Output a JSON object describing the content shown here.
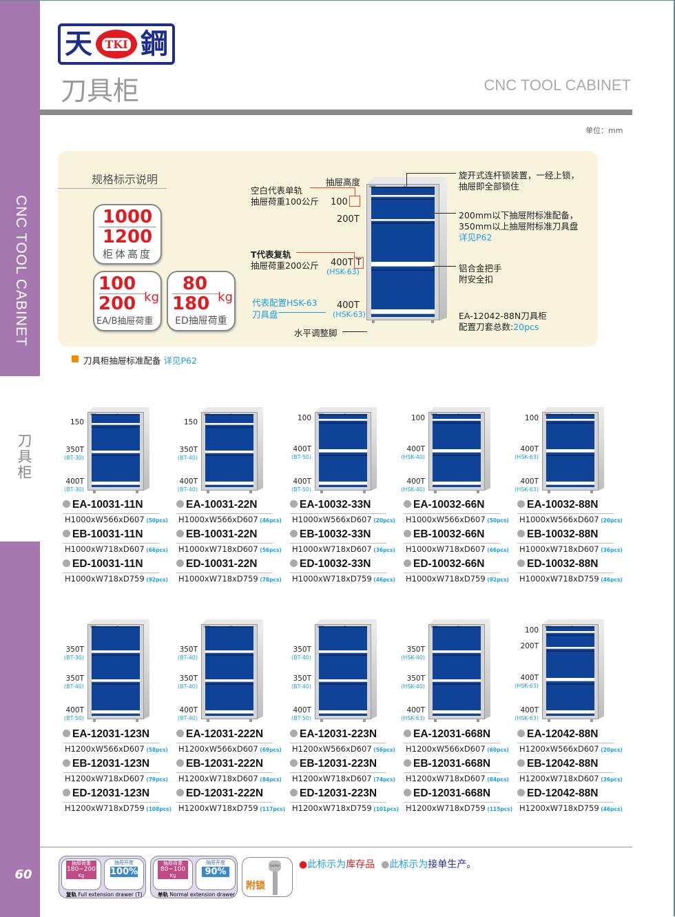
{
  "sidebar": {
    "title_en": "CNC TOOL CABINET",
    "title_cn": "刀具柜",
    "page_number": "60"
  },
  "header": {
    "logo_left": "天",
    "logo_mark": "TKI",
    "logo_right": "鋼",
    "title": "刀具柜",
    "title_en": "CNC TOOL CABINET",
    "unit": "单位：mm"
  },
  "spec": {
    "heading": "规格标示说明",
    "height_badge": {
      "v1": "1000",
      "v2": "1200",
      "caption": "柜体高度"
    },
    "eab_badge": {
      "v1": "100",
      "v2": "200",
      "unit": "kg",
      "caption": "EA/B抽屉荷重"
    },
    "ed_badge": {
      "v1": "80",
      "v2": "180",
      "unit": "kg",
      "caption": "ED抽屉荷重"
    },
    "drawer_height_label": "抽屉高度",
    "single_rail": [
      "空白代表单轨",
      "抽屉荷重100公斤"
    ],
    "double_rail": [
      "T代表复轨",
      "抽屉荷重200公斤"
    ],
    "hsk_note": [
      "代表配置HSK-63",
      "刀具盘"
    ],
    "foot_label": "水平调整脚",
    "lock_note": [
      "旋开式连杆锁装置，一经上锁，",
      "抽屉即全部锁住"
    ],
    "tray_note": [
      "200mm以下抽屉附标准配备，",
      "350mm以上抽屉附标准刀具盘"
    ],
    "tray_link": "详见P62",
    "handle_note": [
      "铝合金把手",
      "附安全扣"
    ],
    "model_note": "EA-12042-88N刀具柜",
    "total_label": "配置刀套总数:",
    "total_value": "20pcs",
    "drawers": [
      {
        "h": 100,
        "label": "100",
        "mark": ""
      },
      {
        "h": 200,
        "label": "200T"
      },
      {
        "h": 400,
        "label": "400T",
        "mark": "T",
        "tool": "(HSK-63)"
      },
      {
        "h": 400,
        "label": "400T",
        "tool": "(HSK-63)"
      }
    ]
  },
  "std_note": {
    "text": "刀具柜抽屉标准配备",
    "link": "详见P62"
  },
  "products": [
    {
      "drawers": [
        {
          "h": 150,
          "label": "150"
        },
        {
          "h": 350,
          "label": "350T",
          "tool": "(BT-30)"
        },
        {
          "h": 400,
          "label": "400T",
          "tool": "(BT-30)"
        }
      ],
      "models": [
        {
          "code": "EA-10031-11N",
          "dims": "H1000xW566xD607",
          "pcs": "(50pcs)"
        },
        {
          "code": "EB-10031-11N",
          "dims": "H1000xW718xD607",
          "pcs": "(66pcs)"
        },
        {
          "code": "ED-10031-11N",
          "dims": "H1000xW718xD759",
          "pcs": "(92pcs)"
        }
      ]
    },
    {
      "drawers": [
        {
          "h": 150,
          "label": "150"
        },
        {
          "h": 350,
          "label": "350T",
          "tool": "(BT-40)"
        },
        {
          "h": 400,
          "label": "400T",
          "tool": "(BT-40)"
        }
      ],
      "models": [
        {
          "code": "EA-10031-22N",
          "dims": "H1000xW566xD607",
          "pcs": "(46pcs)"
        },
        {
          "code": "EB-10031-22N",
          "dims": "H1000xW718xD607",
          "pcs": "(56pcs)"
        },
        {
          "code": "ED-10031-22N",
          "dims": "H1000xW718xD759",
          "pcs": "(78pcs)"
        }
      ]
    },
    {
      "drawers": [
        {
          "h": 100,
          "label": "100"
        },
        {
          "h": 400,
          "label": "400T",
          "tool": "(BT-50)"
        },
        {
          "h": 400,
          "label": "400T",
          "tool": "(BT-50)"
        }
      ],
      "models": [
        {
          "code": "EA-10032-33N",
          "dims": "H1000xW566xD607",
          "pcs": "(20pcs)"
        },
        {
          "code": "EB-10032-33N",
          "dims": "H1000xW718xD607",
          "pcs": "(36pcs)"
        },
        {
          "code": "ED-10032-33N",
          "dims": "H1000xW718xD759",
          "pcs": "(46pcs)"
        }
      ]
    },
    {
      "drawers": [
        {
          "h": 100,
          "label": "100"
        },
        {
          "h": 400,
          "label": "400T",
          "tool": "(HSK-40)"
        },
        {
          "h": 400,
          "label": "400T",
          "tool": "(HSK-40)"
        }
      ],
      "models": [
        {
          "code": "EA-10032-66N",
          "dims": "H1000xW566xD607",
          "pcs": "(50pcs)"
        },
        {
          "code": "EB-10032-66N",
          "dims": "H1000xW718xD607",
          "pcs": "(66pcs)"
        },
        {
          "code": "ED-10032-66N",
          "dims": "H1000xW718xD759",
          "pcs": "(92pcs)"
        }
      ]
    },
    {
      "drawers": [
        {
          "h": 100,
          "label": "100"
        },
        {
          "h": 400,
          "label": "400T",
          "tool": "(HSK-63)"
        },
        {
          "h": 400,
          "label": "400T",
          "tool": "(HSK-63)"
        }
      ],
      "models": [
        {
          "code": "EA-10032-88N",
          "dims": "H1000xW566xD607",
          "pcs": "(20pcs)"
        },
        {
          "code": "EB-10032-88N",
          "dims": "H1000xW718xD607",
          "pcs": "(36pcs)"
        },
        {
          "code": "ED-10032-88N",
          "dims": "H1000xW718xD759",
          "pcs": "(46pcs)"
        }
      ]
    },
    {
      "drawers": [
        {
          "h": 350,
          "label": "350T",
          "tool": "(BT-30)"
        },
        {
          "h": 350,
          "label": "350T",
          "tool": "(BT-40)"
        },
        {
          "h": 400,
          "label": "400T",
          "tool": "(BT-50)"
        }
      ],
      "models": [
        {
          "code": "EA-12031-123N",
          "dims": "H1200xW566xD607",
          "pcs": "(58pcs)"
        },
        {
          "code": "EB-12031-123N",
          "dims": "H1200xW718xD607",
          "pcs": "(79pcs)"
        },
        {
          "code": "ED-12031-123N",
          "dims": "H1200xW718xD759",
          "pcs": "(108pcs)"
        }
      ]
    },
    {
      "drawers": [
        {
          "h": 350,
          "label": "350T",
          "tool": "(BT-40)"
        },
        {
          "h": 350,
          "label": "350T",
          "tool": "(BT-40)"
        },
        {
          "h": 400,
          "label": "400T",
          "tool": "(BT-40)"
        }
      ],
      "models": [
        {
          "code": "EA-12031-222N",
          "dims": "H1200xW566xD607",
          "pcs": "(69pcs)"
        },
        {
          "code": "EB-12031-222N",
          "dims": "H1200xW718xD607",
          "pcs": "(84pcs)"
        },
        {
          "code": "ED-12031-222N",
          "dims": "H1200xW718xD759",
          "pcs": "(117pcs)"
        }
      ]
    },
    {
      "drawers": [
        {
          "h": 350,
          "label": "350T",
          "tool": "(BT-40)"
        },
        {
          "h": 350,
          "label": "350T",
          "tool": "(BT-40)"
        },
        {
          "h": 400,
          "label": "400T",
          "tool": "(BT-50)"
        }
      ],
      "models": [
        {
          "code": "EA-12031-223N",
          "dims": "H1200xW566xD607",
          "pcs": "(56pcs)"
        },
        {
          "code": "EB-12031-223N",
          "dims": "H1200xW718xD607",
          "pcs": "(74pcs)"
        },
        {
          "code": "ED-12031-223N",
          "dims": "H1200xW718xD759",
          "pcs": "(101pcs)"
        }
      ]
    },
    {
      "drawers": [
        {
          "h": 350,
          "label": "350T",
          "tool": "(HSK-40)"
        },
        {
          "h": 350,
          "label": "350T",
          "tool": "(HSK-40)"
        },
        {
          "h": 400,
          "label": "400T",
          "tool": "(HSK-63)"
        }
      ],
      "models": [
        {
          "code": "EA-12031-668N",
          "dims": "H1200xW566xD607",
          "pcs": "(60pcs)"
        },
        {
          "code": "EB-12031-668N",
          "dims": "H1200xW718xD607",
          "pcs": "(84pcs)"
        },
        {
          "code": "ED-12031-668N",
          "dims": "H1200xW718xD759",
          "pcs": "(115pcs)"
        }
      ]
    },
    {
      "drawers": [
        {
          "h": 100,
          "label": "100"
        },
        {
          "h": 200,
          "label": "200T"
        },
        {
          "h": 400,
          "label": "400T",
          "tool": "(HSK-63)"
        },
        {
          "h": 400,
          "label": "400T",
          "tool": "(HSK-63)"
        }
      ],
      "models": [
        {
          "code": "EA-12042-88N",
          "dims": "H1200xW566xD607",
          "pcs": "(20pcs)"
        },
        {
          "code": "EB-12042-88N",
          "dims": "H1200xW718xD607",
          "pcs": "(36pcs)"
        },
        {
          "code": "ED-12042-88N",
          "dims": "H1200xW718xD759",
          "pcs": "(46pcs)"
        }
      ]
    }
  ],
  "legend_icons": {
    "full": {
      "load_label": "抽屉荷重",
      "load": "180~200",
      "load_unit": "Kg",
      "ext_label": "抽屉开度",
      "ext": "100%",
      "caption_cn": "复轨",
      "caption_en": "Full extension drawer (T)"
    },
    "normal": {
      "load_label": "抽屉荷重",
      "load": "80~100",
      "load_unit": "Kg",
      "ext_label": "抽屉开度",
      "ext": "90%",
      "caption_cn": "单轨",
      "caption_en": "Normal extension drawer"
    },
    "lock": {
      "brand": "tanko",
      "label": "附锁"
    }
  },
  "stock_legend": {
    "in_stock_prefix": "此标示为",
    "in_stock": "库存品",
    "made_prefix": "此标示为",
    "made": "接单生产。"
  },
  "colors": {
    "accent_purple": "#a678b0",
    "drawer_blue": "#0e4397",
    "link_blue": "#1aa0e0",
    "red": "#e01b22"
  }
}
